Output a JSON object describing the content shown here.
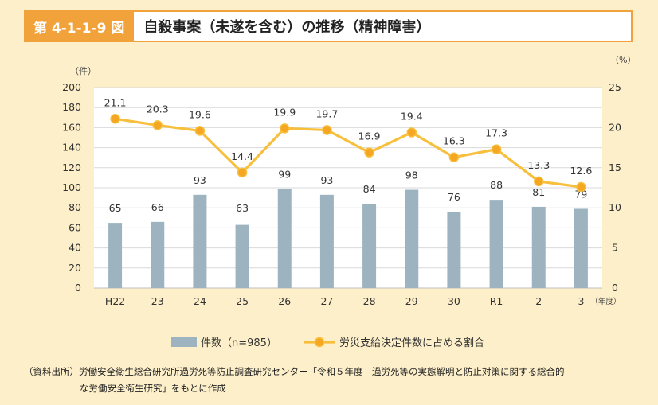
{
  "header": {
    "figure_label": "第 4-1-1-9 図",
    "title": "自殺事案（未遂を含む）の推移（精神障害）"
  },
  "chart_data": {
    "type": "bar+line",
    "categories": [
      "H22",
      "23",
      "24",
      "25",
      "26",
      "27",
      "28",
      "29",
      "30",
      "R1",
      "2",
      "3"
    ],
    "x_unit": "（年度）",
    "left_axis": {
      "unit": "（件）",
      "ylim": [
        0,
        200
      ],
      "ticks": [
        0,
        20,
        40,
        60,
        80,
        100,
        120,
        140,
        160,
        180,
        200
      ]
    },
    "right_axis": {
      "unit": "（%）",
      "ylim": [
        0,
        25
      ],
      "ticks": [
        0,
        5,
        10,
        15,
        20,
        25
      ]
    },
    "series": [
      {
        "name": "件数（n=985）",
        "kind": "bar",
        "axis": "left",
        "color": "#9db4c0",
        "values": [
          65,
          66,
          93,
          63,
          99,
          93,
          84,
          98,
          76,
          88,
          81,
          79
        ],
        "labels": [
          "65",
          "66",
          "93",
          "63",
          "99",
          "93",
          "84",
          "98",
          "76",
          "88",
          "81",
          "79"
        ]
      },
      {
        "name": "労災支給決定件数に占める割合",
        "kind": "line",
        "axis": "right",
        "color": "#f7bf3b",
        "values": [
          21.1,
          20.3,
          19.6,
          14.4,
          19.9,
          19.7,
          16.9,
          19.4,
          16.3,
          17.3,
          13.3,
          12.6
        ],
        "labels": [
          "21.1",
          "20.3",
          "19.6",
          "14.4",
          "19.9",
          "19.7",
          "16.9",
          "19.4",
          "16.3",
          "17.3",
          "13.3",
          "12.6"
        ]
      }
    ],
    "grid": true,
    "legend_position": "bottom"
  },
  "source": {
    "line1": "（資料出所）労働安全衛生総合研究所過労死等防止調査研究センター「令和５年度　過労死等の実態解明と防止対策に関する総合的",
    "line2": "な労働安全衛生研究」をもとに作成"
  }
}
